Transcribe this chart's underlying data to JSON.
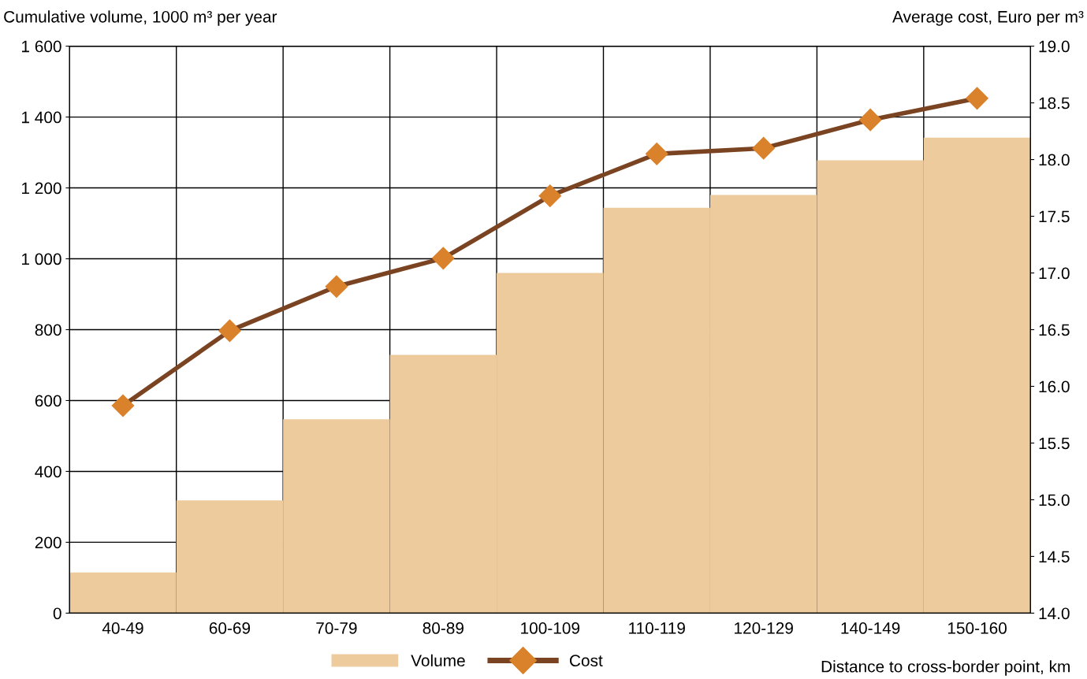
{
  "chart_data": {
    "type": "bar",
    "categories": [
      "40-49",
      "60-69",
      "70-79",
      "80-89",
      "100-109",
      "110-119",
      "120-129",
      "140-149",
      "150-160"
    ],
    "series": [
      {
        "name": "Volume",
        "color": "#edcb9d",
        "values": [
          115,
          318,
          547,
          729,
          960,
          1144,
          1180,
          1278,
          1342
        ]
      },
      {
        "name": "Cost",
        "type": "line",
        "axis": "y2",
        "color": "#7a4422",
        "marker": "diamond",
        "colors": [
          "#d9822b",
          "#d9822b",
          "#d9822b",
          "#d9822b",
          "#d9822b",
          "#d9822b",
          "#d9822b",
          "#d9822b",
          "#d9822b"
        ],
        "line_style": "solid",
        "values": [
          15.83,
          16.49,
          16.88,
          17.13,
          17.68,
          18.05,
          18.1,
          18.35,
          18.54
        ]
      }
    ],
    "ylabel": "Cumulative volume, 1000 m³ per year",
    "y2label": "Average cost, Euro per m³",
    "xlabel": "Distance to cross-border point, km",
    "ylim": [
      0,
      1600
    ],
    "yticks": [
      0,
      200,
      400,
      600,
      800,
      {
        "value": 1000,
        "label": "1 000"
      },
      {
        "value": 1200,
        "label": "1 200"
      },
      {
        "value": 1400,
        "label": "1 400"
      },
      {
        "value": 1600,
        "label": "1 600"
      }
    ],
    "y2lim": [
      14,
      19
    ],
    "y2ticks": [
      {
        "value": 14,
        "label": "14.0"
      },
      {
        "value": 14.5,
        "label": "14.5"
      },
      {
        "value": 15,
        "label": "15.0"
      },
      {
        "value": 15.5,
        "label": "15.5"
      },
      {
        "value": 16,
        "label": "16.0"
      },
      {
        "value": 16.5,
        "label": "16.5"
      },
      {
        "value": 17,
        "label": "17.0"
      },
      {
        "value": 17.5,
        "label": "17.5"
      },
      {
        "value": 18,
        "label": "18.0"
      },
      {
        "value": 18.5,
        "label": "18.5"
      },
      {
        "value": 19,
        "label": "19.0"
      }
    ],
    "grid": true,
    "legend": "bottom"
  }
}
